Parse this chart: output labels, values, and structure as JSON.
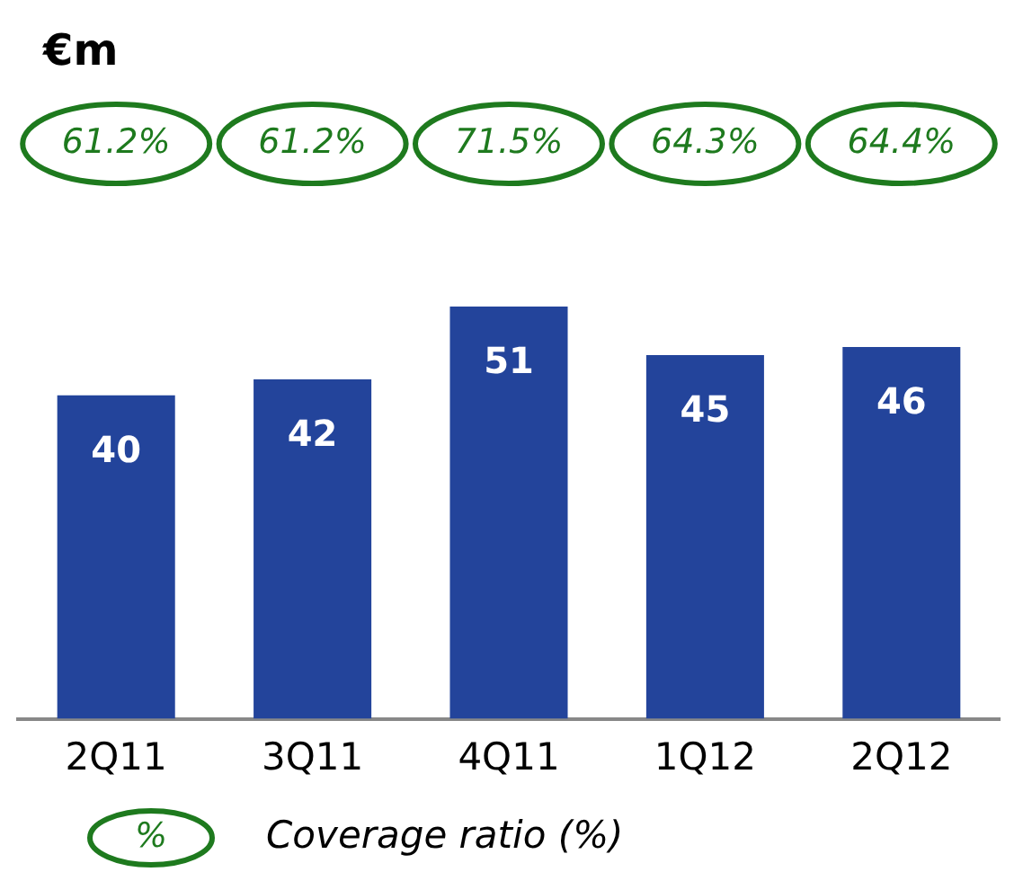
{
  "chart_data": {
    "type": "bar",
    "categories": [
      "2Q11",
      "3Q11",
      "4Q11",
      "1Q12",
      "2Q12"
    ],
    "values": [
      40,
      42,
      51,
      45,
      46
    ],
    "color": "#23449b",
    "data_labels": true,
    "grid": false,
    "legend": false,
    "annotations": [
      "€m",
      "61.2%",
      "61.2%",
      "71.5%",
      "64.3%",
      "64.4%",
      "%",
      "Coverage ratio (%)"
    ]
  }
}
